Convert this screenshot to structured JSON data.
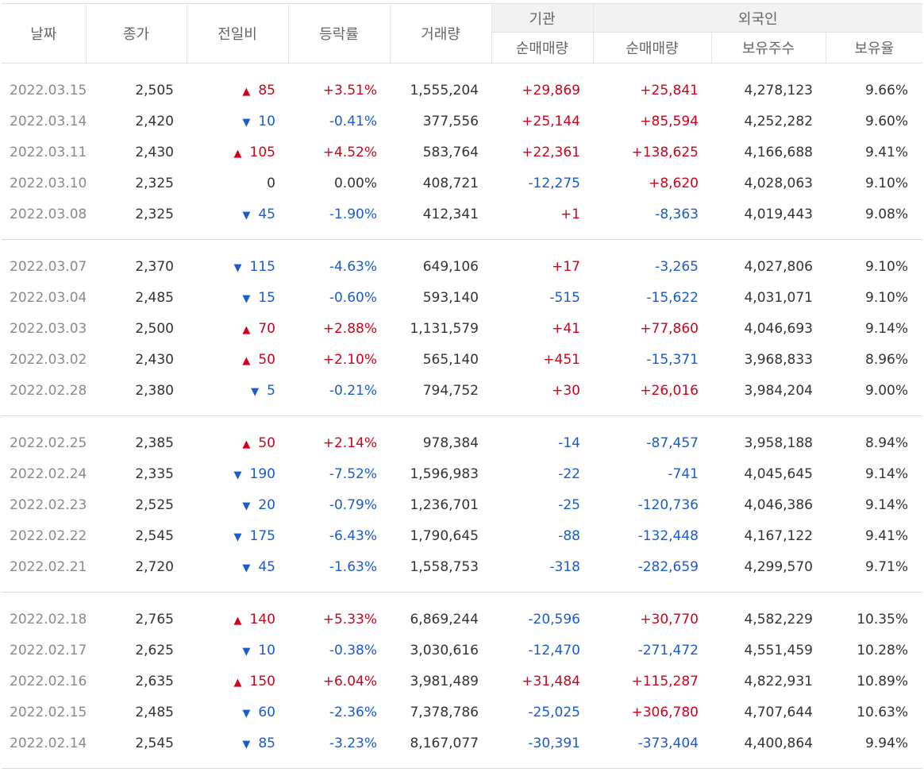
{
  "colors": {
    "up": "#d0021b",
    "down": "#1a5bd1",
    "header_group_bg": "#f2f2f2"
  },
  "header": {
    "date": "날짜",
    "close": "종가",
    "change": "전일비",
    "rate": "등락률",
    "volume": "거래량",
    "institution": "기관",
    "foreigner": "외국인",
    "inst_net": "순매매량",
    "for_net": "순매매량",
    "holdings": "보유주수",
    "ratio": "보유율"
  },
  "icons": {
    "up": "triangle-up-icon",
    "down": "triangle-down-icon"
  },
  "groups": [
    [
      {
        "date": "2022.03.15",
        "close": "2,505",
        "dir": "up",
        "change": "85",
        "rate": "+3.51%",
        "volume": "1,555,204",
        "inst": "+29,869",
        "inst_dir": "up",
        "for": "+25,841",
        "for_dir": "up",
        "holdings": "4,278,123",
        "ratio": "9.66%"
      },
      {
        "date": "2022.03.14",
        "close": "2,420",
        "dir": "down",
        "change": "10",
        "rate": "-0.41%",
        "volume": "377,556",
        "inst": "+25,144",
        "inst_dir": "up",
        "for": "+85,594",
        "for_dir": "up",
        "holdings": "4,252,282",
        "ratio": "9.60%"
      },
      {
        "date": "2022.03.11",
        "close": "2,430",
        "dir": "up",
        "change": "105",
        "rate": "+4.52%",
        "volume": "583,764",
        "inst": "+22,361",
        "inst_dir": "up",
        "for": "+138,625",
        "for_dir": "up",
        "holdings": "4,166,688",
        "ratio": "9.41%"
      },
      {
        "date": "2022.03.10",
        "close": "2,325",
        "dir": "flat",
        "change": "0",
        "rate": "0.00%",
        "volume": "408,721",
        "inst": "-12,275",
        "inst_dir": "down",
        "for": "+8,620",
        "for_dir": "up",
        "holdings": "4,028,063",
        "ratio": "9.10%"
      },
      {
        "date": "2022.03.08",
        "close": "2,325",
        "dir": "down",
        "change": "45",
        "rate": "-1.90%",
        "volume": "412,341",
        "inst": "+1",
        "inst_dir": "up",
        "for": "-8,363",
        "for_dir": "down",
        "holdings": "4,019,443",
        "ratio": "9.08%"
      }
    ],
    [
      {
        "date": "2022.03.07",
        "close": "2,370",
        "dir": "down",
        "change": "115",
        "rate": "-4.63%",
        "volume": "649,106",
        "inst": "+17",
        "inst_dir": "up",
        "for": "-3,265",
        "for_dir": "down",
        "holdings": "4,027,806",
        "ratio": "9.10%"
      },
      {
        "date": "2022.03.04",
        "close": "2,485",
        "dir": "down",
        "change": "15",
        "rate": "-0.60%",
        "volume": "593,140",
        "inst": "-515",
        "inst_dir": "down",
        "for": "-15,622",
        "for_dir": "down",
        "holdings": "4,031,071",
        "ratio": "9.10%"
      },
      {
        "date": "2022.03.03",
        "close": "2,500",
        "dir": "up",
        "change": "70",
        "rate": "+2.88%",
        "volume": "1,131,579",
        "inst": "+41",
        "inst_dir": "up",
        "for": "+77,860",
        "for_dir": "up",
        "holdings": "4,046,693",
        "ratio": "9.14%"
      },
      {
        "date": "2022.03.02",
        "close": "2,430",
        "dir": "up",
        "change": "50",
        "rate": "+2.10%",
        "volume": "565,140",
        "inst": "+451",
        "inst_dir": "up",
        "for": "-15,371",
        "for_dir": "down",
        "holdings": "3,968,833",
        "ratio": "8.96%"
      },
      {
        "date": "2022.02.28",
        "close": "2,380",
        "dir": "down",
        "change": "5",
        "rate": "-0.21%",
        "volume": "794,752",
        "inst": "+30",
        "inst_dir": "up",
        "for": "+26,016",
        "for_dir": "up",
        "holdings": "3,984,204",
        "ratio": "9.00%"
      }
    ],
    [
      {
        "date": "2022.02.25",
        "close": "2,385",
        "dir": "up",
        "change": "50",
        "rate": "+2.14%",
        "volume": "978,384",
        "inst": "-14",
        "inst_dir": "down",
        "for": "-87,457",
        "for_dir": "down",
        "holdings": "3,958,188",
        "ratio": "8.94%"
      },
      {
        "date": "2022.02.24",
        "close": "2,335",
        "dir": "down",
        "change": "190",
        "rate": "-7.52%",
        "volume": "1,596,983",
        "inst": "-22",
        "inst_dir": "down",
        "for": "-741",
        "for_dir": "down",
        "holdings": "4,045,645",
        "ratio": "9.14%"
      },
      {
        "date": "2022.02.23",
        "close": "2,525",
        "dir": "down",
        "change": "20",
        "rate": "-0.79%",
        "volume": "1,236,701",
        "inst": "-25",
        "inst_dir": "down",
        "for": "-120,736",
        "for_dir": "down",
        "holdings": "4,046,386",
        "ratio": "9.14%"
      },
      {
        "date": "2022.02.22",
        "close": "2,545",
        "dir": "down",
        "change": "175",
        "rate": "-6.43%",
        "volume": "1,790,645",
        "inst": "-88",
        "inst_dir": "down",
        "for": "-132,448",
        "for_dir": "down",
        "holdings": "4,167,122",
        "ratio": "9.41%"
      },
      {
        "date": "2022.02.21",
        "close": "2,720",
        "dir": "down",
        "change": "45",
        "rate": "-1.63%",
        "volume": "1,558,753",
        "inst": "-318",
        "inst_dir": "down",
        "for": "-282,659",
        "for_dir": "down",
        "holdings": "4,299,570",
        "ratio": "9.71%"
      }
    ],
    [
      {
        "date": "2022.02.18",
        "close": "2,765",
        "dir": "up",
        "change": "140",
        "rate": "+5.33%",
        "volume": "6,869,244",
        "inst": "-20,596",
        "inst_dir": "down",
        "for": "+30,770",
        "for_dir": "up",
        "holdings": "4,582,229",
        "ratio": "10.35%"
      },
      {
        "date": "2022.02.17",
        "close": "2,625",
        "dir": "down",
        "change": "10",
        "rate": "-0.38%",
        "volume": "3,030,616",
        "inst": "-12,470",
        "inst_dir": "down",
        "for": "-271,472",
        "for_dir": "down",
        "holdings": "4,551,459",
        "ratio": "10.28%"
      },
      {
        "date": "2022.02.16",
        "close": "2,635",
        "dir": "up",
        "change": "150",
        "rate": "+6.04%",
        "volume": "3,981,489",
        "inst": "+31,484",
        "inst_dir": "up",
        "for": "+115,287",
        "for_dir": "up",
        "holdings": "4,822,931",
        "ratio": "10.89%"
      },
      {
        "date": "2022.02.15",
        "close": "2,485",
        "dir": "down",
        "change": "60",
        "rate": "-2.36%",
        "volume": "7,378,786",
        "inst": "-25,025",
        "inst_dir": "down",
        "for": "+306,780",
        "for_dir": "up",
        "holdings": "4,707,644",
        "ratio": "10.63%"
      },
      {
        "date": "2022.02.14",
        "close": "2,545",
        "dir": "down",
        "change": "85",
        "rate": "-3.23%",
        "volume": "8,167,077",
        "inst": "-30,391",
        "inst_dir": "down",
        "for": "-373,404",
        "for_dir": "down",
        "holdings": "4,400,864",
        "ratio": "9.94%"
      }
    ]
  ]
}
